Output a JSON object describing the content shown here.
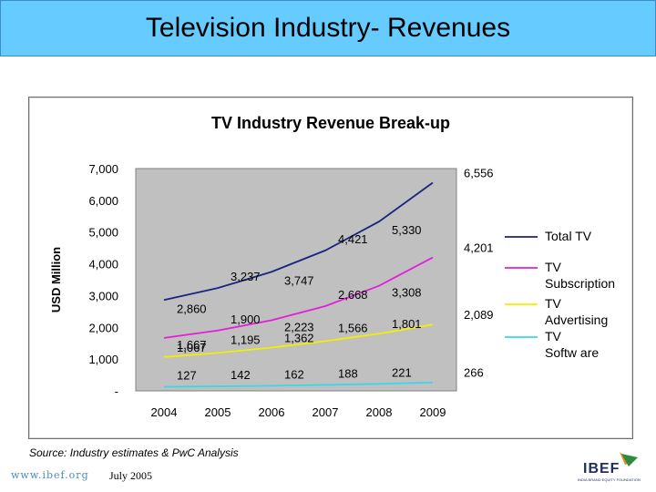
{
  "header": {
    "title": "Television Industry- Revenues"
  },
  "chart_data": {
    "type": "line",
    "title": "TV Industry Revenue Break-up",
    "xlabel": "",
    "ylabel": "USD Million",
    "x": [
      "2004",
      "2005",
      "2006",
      "2007",
      "2008",
      "2009"
    ],
    "ytick_labels": [
      "-",
      "1,000",
      "2,000",
      "3,000",
      "4,000",
      "5,000",
      "6,000",
      "7,000"
    ],
    "ylim": [
      0,
      7000
    ],
    "series": [
      {
        "name": "Total TV",
        "color": "#1a237e",
        "values": [
          2860,
          3237,
          3747,
          4421,
          5330,
          6556
        ],
        "labels": [
          "2,860",
          "3,237",
          "3,747",
          "4,421",
          "5,330",
          "6,556"
        ]
      },
      {
        "name": "TV Subscription",
        "color": "#e020d8",
        "values": [
          1667,
          1900,
          2223,
          2668,
          3308,
          4201
        ],
        "labels": [
          "1,667",
          "1,900",
          "2,223",
          "2,668",
          "3,308",
          "4,201"
        ]
      },
      {
        "name": "TV Advertising",
        "color": "#f0f000",
        "values": [
          1067,
          1195,
          1362,
          1566,
          1801,
          2089
        ],
        "labels": [
          "1,067",
          "1,195",
          "1,362",
          "1,566",
          "1,801",
          "2,089"
        ]
      },
      {
        "name": "TV Softw are",
        "color": "#38d8e8",
        "values": [
          127,
          142,
          162,
          188,
          221,
          266
        ],
        "labels": [
          "127",
          "142",
          "162",
          "188",
          "221",
          "266"
        ]
      }
    ],
    "legend": "right",
    "legend_lines": [
      [
        "Total TV"
      ],
      [
        "TV",
        "Subscription"
      ],
      [
        "TV",
        "Advertising"
      ],
      [
        "TV",
        "Softw are"
      ]
    ],
    "plot_background": "#c0c0c0",
    "grid": false
  },
  "footer": {
    "source": "Source: Industry estimates & PwC Analysis",
    "url": "www.ibef.org",
    "date": "July 2005",
    "logo_text": "IBEF",
    "logo_subtext": "INDIA BRAND EQUITY FOUNDATION"
  }
}
